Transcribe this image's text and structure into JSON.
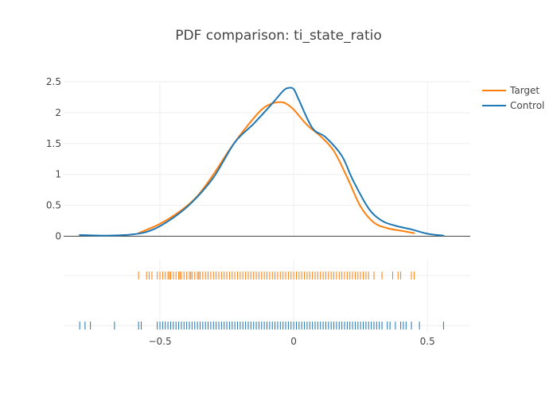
{
  "chart_data": {
    "type": "line",
    "title": "PDF comparison: ti_state_ratio",
    "xlabel": "",
    "ylabel": "",
    "xlim": [
      -0.86,
      0.66
    ],
    "ylim": [
      0,
      2.5
    ],
    "grid": true,
    "legend_position": "top-right",
    "x_ticks": [
      {
        "value": -0.5,
        "label": "−0.5"
      },
      {
        "value": 0,
        "label": "0"
      },
      {
        "value": 0.5,
        "label": "0.5"
      }
    ],
    "y_ticks": [
      {
        "value": 0,
        "label": "0"
      },
      {
        "value": 0.5,
        "label": "0.5"
      },
      {
        "value": 1,
        "label": "1"
      },
      {
        "value": 1.5,
        "label": "1.5"
      },
      {
        "value": 2,
        "label": "2"
      },
      {
        "value": 2.5,
        "label": "2.5"
      }
    ],
    "series": [
      {
        "name": "Target",
        "color": "#ff7f0e",
        "x": [
          -0.58,
          -0.5,
          -0.42,
          -0.36,
          -0.3,
          -0.24,
          -0.18,
          -0.12,
          -0.08,
          -0.05,
          -0.03,
          0.0,
          0.05,
          0.1,
          0.15,
          0.2,
          0.25,
          0.3,
          0.35,
          0.4,
          0.45
        ],
        "y": [
          0.05,
          0.2,
          0.42,
          0.65,
          1.0,
          1.4,
          1.75,
          2.05,
          2.15,
          2.17,
          2.15,
          2.05,
          1.8,
          1.62,
          1.38,
          0.95,
          0.48,
          0.22,
          0.13,
          0.09,
          0.05
        ]
      },
      {
        "name": "Control",
        "color": "#1f77b4",
        "x": [
          -0.8,
          -0.7,
          -0.6,
          -0.53,
          -0.45,
          -0.38,
          -0.3,
          -0.22,
          -0.15,
          -0.08,
          -0.04,
          -0.02,
          0.0,
          0.02,
          0.07,
          0.12,
          0.18,
          0.22,
          0.28,
          0.33,
          0.38,
          0.44,
          0.5,
          0.56
        ],
        "y": [
          0.02,
          0.01,
          0.03,
          0.1,
          0.3,
          0.55,
          0.95,
          1.52,
          1.82,
          2.15,
          2.35,
          2.4,
          2.38,
          2.2,
          1.75,
          1.6,
          1.3,
          0.92,
          0.45,
          0.25,
          0.17,
          0.11,
          0.04,
          0.01
        ]
      }
    ],
    "rug": [
      {
        "name": "Target",
        "color": "#ff7f0e",
        "values": [
          -0.58,
          -0.55,
          -0.54,
          -0.53,
          -0.51,
          -0.5,
          -0.49,
          -0.48,
          -0.47,
          -0.465,
          -0.46,
          -0.45,
          -0.44,
          -0.43,
          -0.425,
          -0.42,
          -0.41,
          -0.4,
          -0.39,
          -0.385,
          -0.38,
          -0.37,
          -0.36,
          -0.355,
          -0.35,
          -0.34,
          -0.33,
          -0.32,
          -0.31,
          -0.3,
          -0.29,
          -0.28,
          -0.27,
          -0.26,
          -0.25,
          -0.24,
          -0.23,
          -0.22,
          -0.21,
          -0.2,
          -0.19,
          -0.18,
          -0.17,
          -0.16,
          -0.15,
          -0.14,
          -0.13,
          -0.12,
          -0.11,
          -0.1,
          -0.09,
          -0.08,
          -0.07,
          -0.06,
          -0.05,
          -0.04,
          -0.03,
          -0.02,
          -0.01,
          0.0,
          0.01,
          0.02,
          0.03,
          0.04,
          0.05,
          0.06,
          0.07,
          0.08,
          0.09,
          0.1,
          0.11,
          0.12,
          0.13,
          0.14,
          0.15,
          0.16,
          0.17,
          0.18,
          0.19,
          0.2,
          0.21,
          0.22,
          0.23,
          0.24,
          0.25,
          0.26,
          0.27,
          0.28,
          0.3,
          0.33,
          0.37,
          0.39,
          0.4,
          0.44,
          0.45
        ]
      },
      {
        "name": "Control",
        "color": "#1f77b4",
        "values": [
          -0.8,
          -0.78,
          -0.76,
          -0.67,
          -0.58,
          -0.57,
          -0.51,
          -0.5,
          -0.49,
          -0.48,
          -0.47,
          -0.46,
          -0.45,
          -0.44,
          -0.43,
          -0.42,
          -0.41,
          -0.4,
          -0.39,
          -0.38,
          -0.37,
          -0.36,
          -0.35,
          -0.34,
          -0.33,
          -0.32,
          -0.31,
          -0.3,
          -0.29,
          -0.28,
          -0.27,
          -0.26,
          -0.25,
          -0.24,
          -0.23,
          -0.22,
          -0.21,
          -0.2,
          -0.19,
          -0.18,
          -0.17,
          -0.16,
          -0.15,
          -0.14,
          -0.13,
          -0.12,
          -0.11,
          -0.1,
          -0.09,
          -0.08,
          -0.07,
          -0.06,
          -0.05,
          -0.04,
          -0.03,
          -0.02,
          -0.01,
          0.0,
          0.01,
          0.02,
          0.03,
          0.04,
          0.05,
          0.06,
          0.07,
          0.08,
          0.09,
          0.1,
          0.11,
          0.12,
          0.13,
          0.14,
          0.15,
          0.16,
          0.17,
          0.18,
          0.19,
          0.2,
          0.21,
          0.22,
          0.23,
          0.24,
          0.25,
          0.26,
          0.27,
          0.28,
          0.29,
          0.3,
          0.31,
          0.32,
          0.33,
          0.35,
          0.36,
          0.38,
          0.4,
          0.41,
          0.42,
          0.44,
          0.47,
          0.56
        ]
      }
    ]
  }
}
